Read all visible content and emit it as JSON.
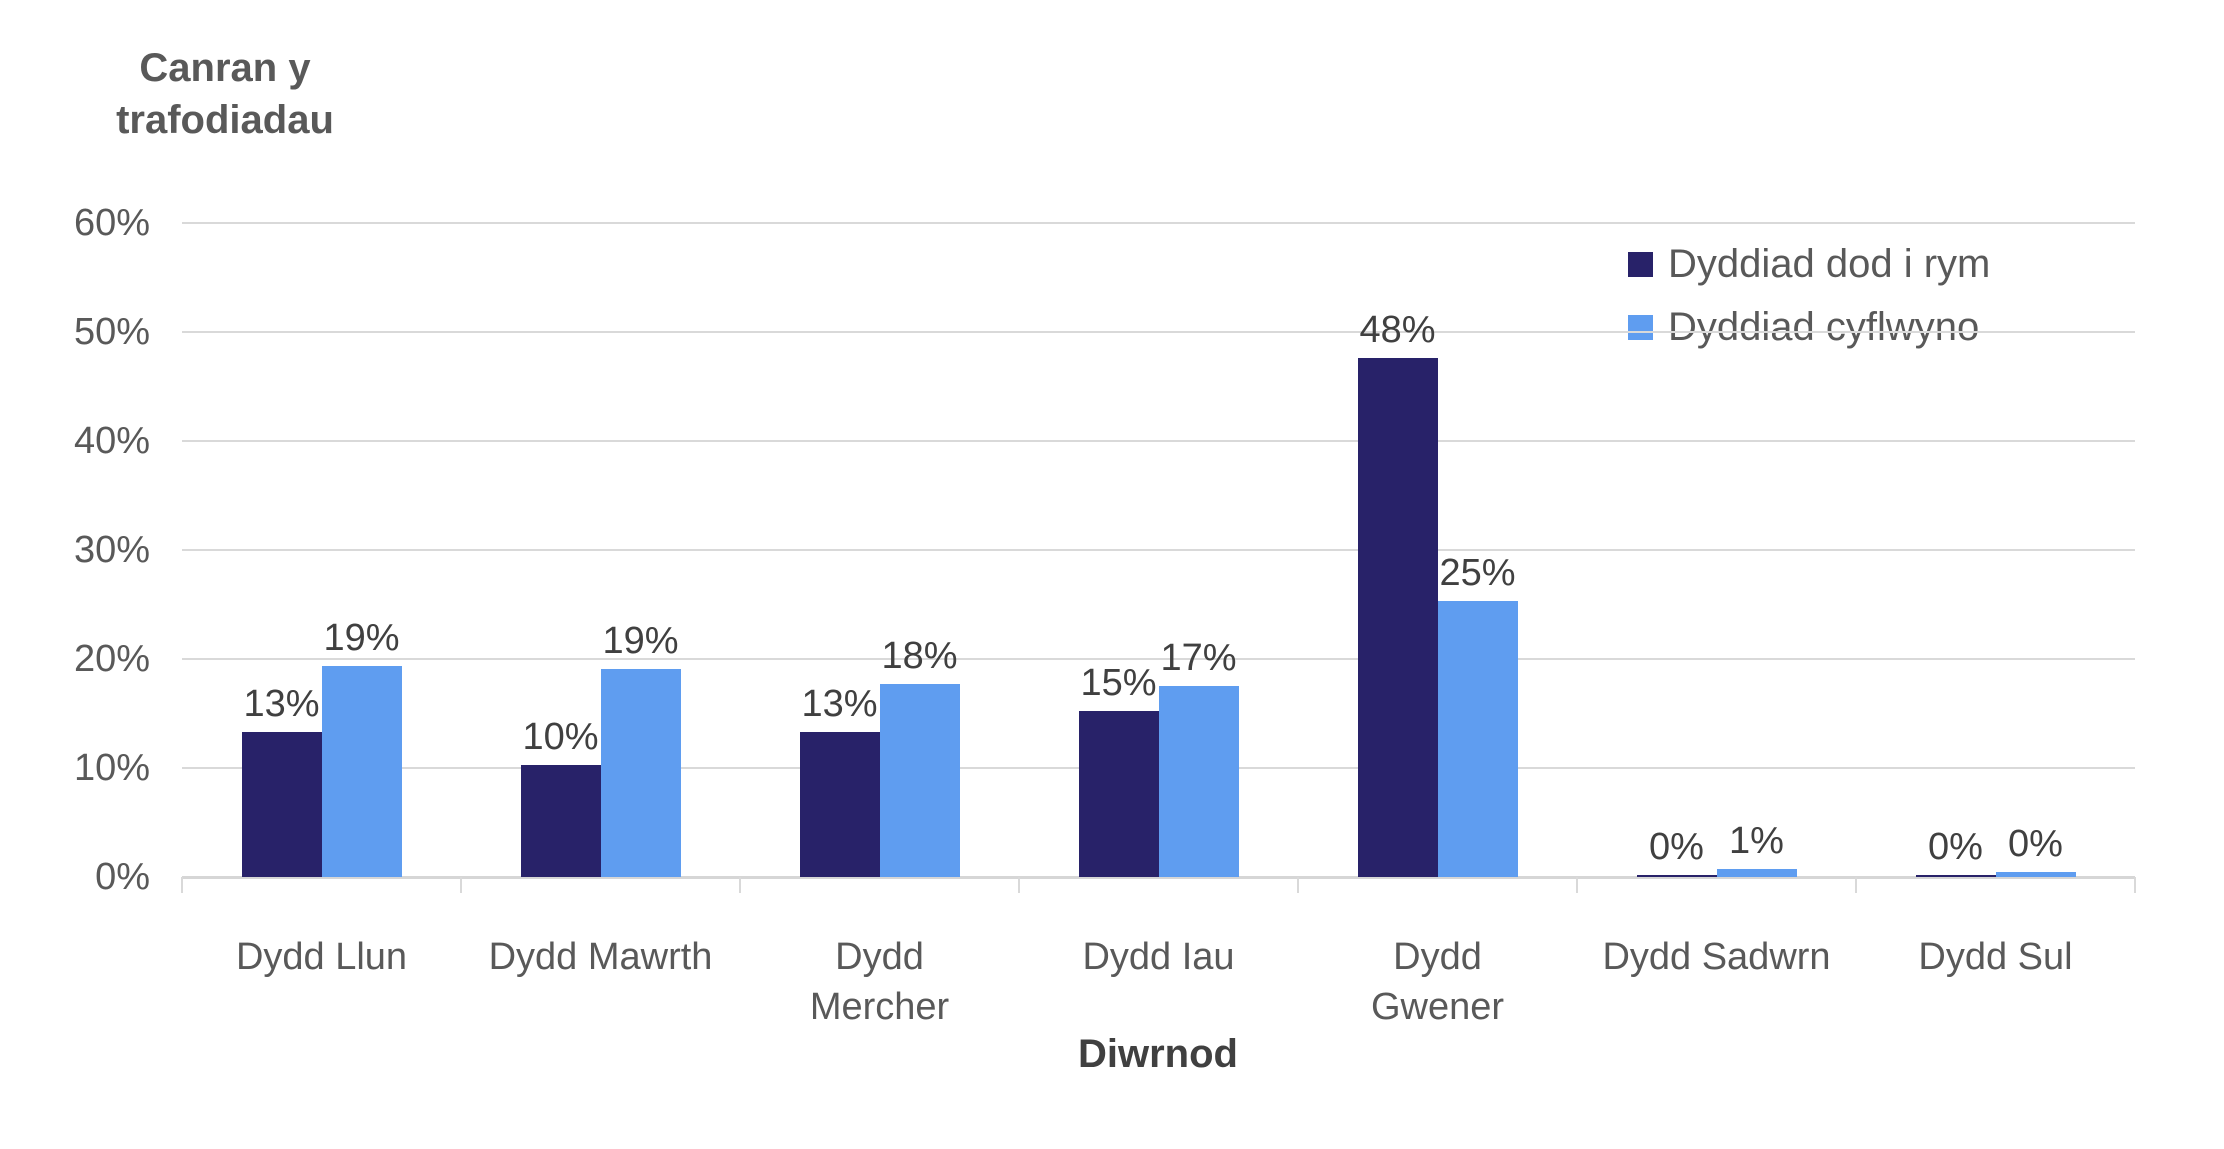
{
  "chart_data": {
    "type": "bar",
    "title": "Canran y trafodiadau",
    "xlabel": "Diwrnod",
    "ylabel": "Canran y trafodiadau",
    "categories": [
      "Dydd Llun",
      "Dydd Mawrth",
      "Dydd Mercher",
      "Dydd Iau",
      "Dydd Gwener",
      "Dydd Sadwrn",
      "Dydd Sul"
    ],
    "series": [
      {
        "name": "Dyddiad dod i rym",
        "color": "#282269",
        "values": [
          13,
          10,
          13,
          15,
          48,
          0,
          0
        ],
        "labels": [
          "13%",
          "10%",
          "13%",
          "15%",
          "48%",
          "0%",
          "0%"
        ],
        "values_precise": [
          13.3,
          10.3,
          13.3,
          15.2,
          47.6,
          0.2,
          0.2
        ]
      },
      {
        "name": "Dyddiad cyflwyno",
        "color": "#5F9DF0",
        "values": [
          19,
          19,
          18,
          17,
          25,
          1,
          0
        ],
        "labels": [
          "19%",
          "19%",
          "18%",
          "17%",
          "25%",
          "1%",
          "0%"
        ],
        "values_precise": [
          19.4,
          19.1,
          17.7,
          17.5,
          25.3,
          0.7,
          0.45
        ]
      }
    ],
    "y_ticks": [
      "0%",
      "10%",
      "20%",
      "30%",
      "40%",
      "50%",
      "60%"
    ],
    "ylim": [
      0,
      60
    ],
    "y_step": 10,
    "grid": true,
    "legend_position": "top-right",
    "gridline_color": "#D9D9D9",
    "tick_label_color": "#595959",
    "data_label_color": "#404040"
  }
}
